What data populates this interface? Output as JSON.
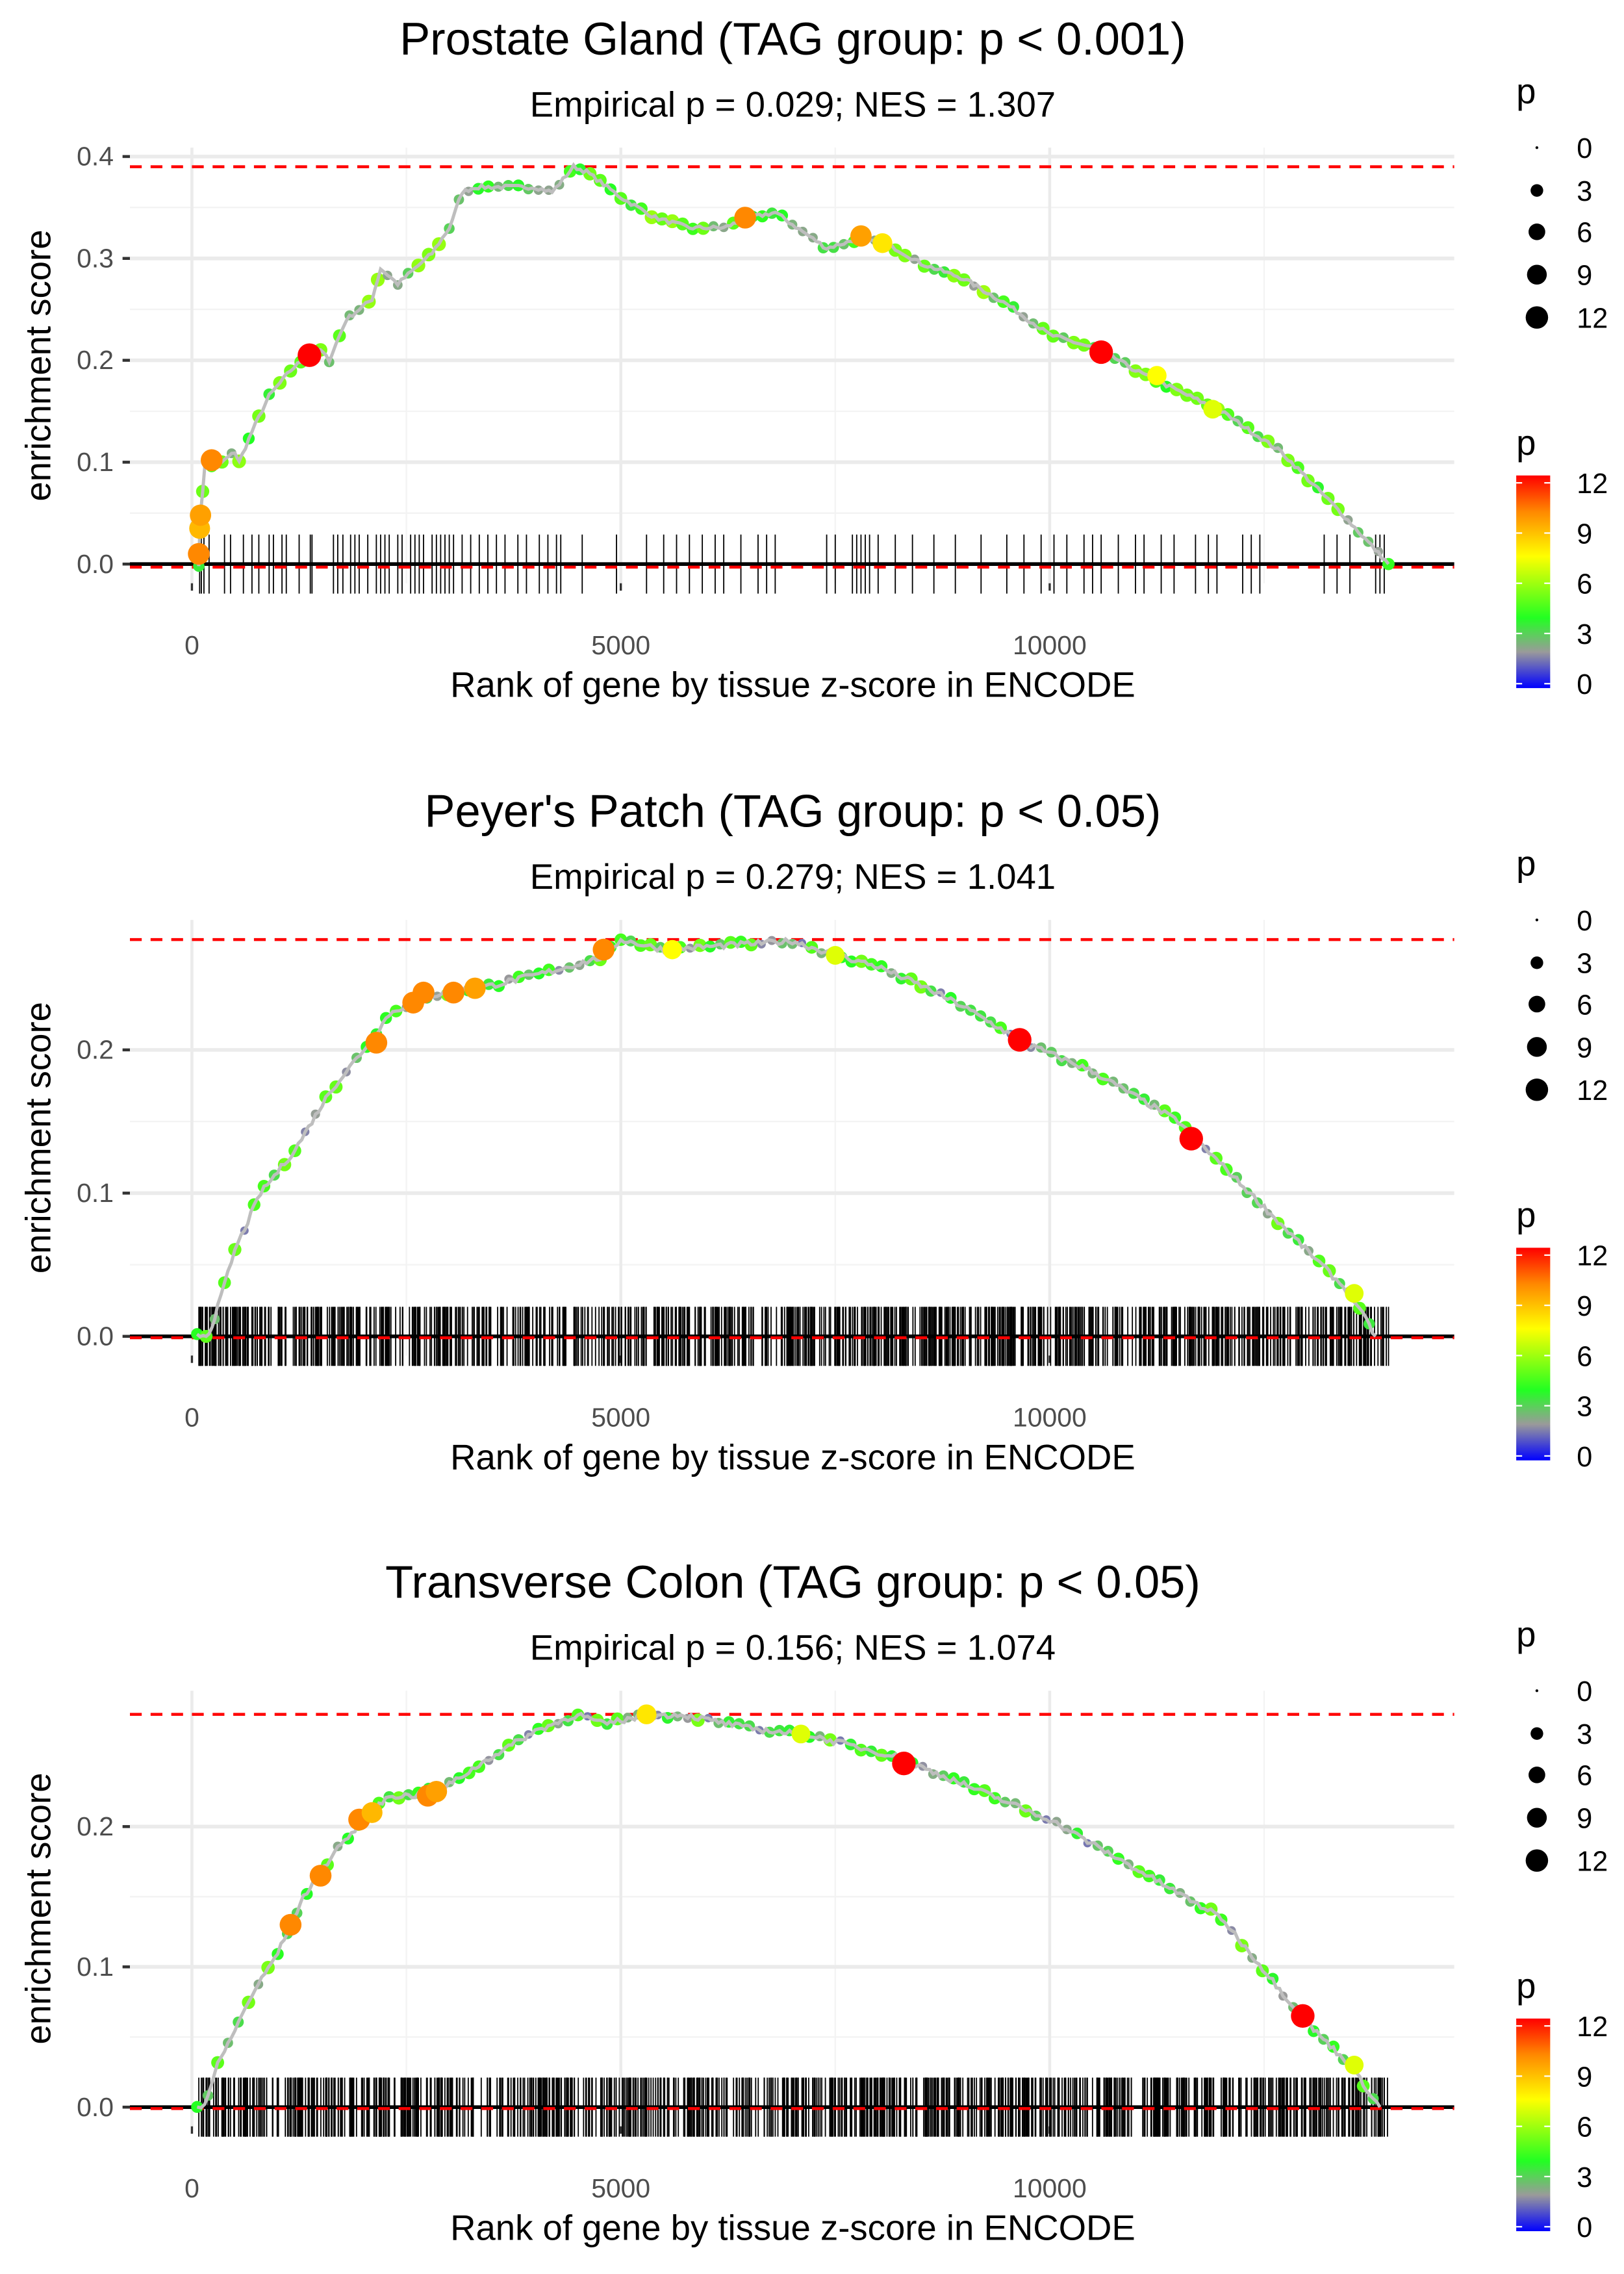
{
  "colors": {
    "max_line": "#ff0000",
    "curve": "#bebebe",
    "grid": "#ebebeb",
    "hit": "#000000",
    "scale": [
      {
        "p": 0,
        "color": "#0000ff"
      },
      {
        "p": 2,
        "color": "#9a9a9a"
      },
      {
        "p": 4,
        "color": "#22ff22"
      },
      {
        "p": 7.5,
        "color": "#ffff00"
      },
      {
        "p": 10,
        "color": "#ff8800"
      },
      {
        "p": 12,
        "color": "#ff0000"
      }
    ]
  },
  "chart_data": [
    {
      "type": "line",
      "title": "Prostate Gland (TAG group: p < 0.001)",
      "subtitle": "Empirical p = 0.029; NES = 1.307",
      "xlabel": "Rank of gene by tissue z-score in ENCODE",
      "ylabel": "enrichment score",
      "xlim": [
        -800,
        14700
      ],
      "x_ticks": [
        {
          "v": 0,
          "label": "0"
        },
        {
          "v": 5000,
          "label": "5000"
        },
        {
          "v": 10000,
          "label": "10000"
        }
      ],
      "y_ticks": [
        {
          "v": 0,
          "label": "0.0"
        },
        {
          "v": 0.1,
          "label": "0.1"
        },
        {
          "v": 0.2,
          "label": "0.2"
        },
        {
          "v": 0.3,
          "label": "0.3"
        },
        {
          "v": 0.4,
          "label": "0.4"
        }
      ],
      "max_es": 0.39,
      "min_es": -0.003,
      "curve": [
        [
          80,
          0.0
        ],
        [
          100,
          0.05
        ],
        [
          150,
          0.095
        ],
        [
          350,
          0.1
        ],
        [
          500,
          0.11
        ],
        [
          550,
          0.1
        ],
        [
          700,
          0.13
        ],
        [
          900,
          0.165
        ],
        [
          1150,
          0.19
        ],
        [
          1350,
          0.205
        ],
        [
          1500,
          0.21
        ],
        [
          1600,
          0.2
        ],
        [
          1800,
          0.24
        ],
        [
          2100,
          0.26
        ],
        [
          2200,
          0.29
        ],
        [
          2400,
          0.275
        ],
        [
          2800,
          0.305
        ],
        [
          3000,
          0.33
        ],
        [
          3150,
          0.365
        ],
        [
          3300,
          0.37
        ],
        [
          4000,
          0.37
        ],
        [
          4200,
          0.365
        ],
        [
          4450,
          0.39
        ],
        [
          4600,
          0.385
        ],
        [
          5000,
          0.36
        ],
        [
          5400,
          0.34
        ],
        [
          5800,
          0.33
        ],
        [
          6200,
          0.33
        ],
        [
          6500,
          0.34
        ],
        [
          6800,
          0.345
        ],
        [
          7400,
          0.31
        ],
        [
          7800,
          0.32
        ],
        [
          8200,
          0.31
        ],
        [
          8500,
          0.295
        ],
        [
          9000,
          0.28
        ],
        [
          9500,
          0.255
        ],
        [
          10000,
          0.225
        ],
        [
          10600,
          0.21
        ],
        [
          11000,
          0.19
        ],
        [
          12000,
          0.15
        ],
        [
          12700,
          0.11
        ],
        [
          13400,
          0.05
        ],
        [
          13950,
          0.0
        ]
      ],
      "highlight_points": [
        [
          80,
          0.01,
          10
        ],
        [
          90,
          0.035,
          9
        ],
        [
          100,
          0.048,
          9.5
        ],
        [
          230,
          0.102,
          10
        ],
        [
          1370,
          0.205,
          12
        ],
        [
          6450,
          0.34,
          10
        ],
        [
          7800,
          0.322,
          9.5
        ],
        [
          8050,
          0.315,
          8
        ],
        [
          10600,
          0.208,
          12
        ],
        [
          11250,
          0.185,
          7.5
        ],
        [
          11900,
          0.152,
          7
        ]
      ],
      "background_p": 4,
      "hits": [
        90,
        110,
        140,
        200,
        380,
        450,
        600,
        700,
        780,
        900,
        950,
        1050,
        1100,
        1250,
        1380,
        1400,
        1650,
        1700,
        1760,
        1850,
        1900,
        1950,
        2050,
        2150,
        2200,
        2250,
        2300,
        2400,
        2450,
        2550,
        2600,
        2650,
        2700,
        2800,
        2850,
        2900,
        2950,
        3000,
        3050,
        3150,
        3250,
        3350,
        3450,
        3550,
        3650,
        3800,
        3900,
        4050,
        4150,
        4250,
        4300,
        4550,
        4950,
        5300,
        5500,
        5650,
        5800,
        5950,
        6100,
        6200,
        6400,
        6600,
        6700,
        6800,
        7400,
        7500,
        7700,
        7750,
        7800,
        7850,
        7900,
        8000,
        8200,
        8400,
        8650,
        8900,
        9200,
        9500,
        9700,
        9900,
        10050,
        10200,
        10400,
        10500,
        10600,
        10800,
        11000,
        11100,
        11300,
        11450,
        11700,
        11850,
        11950,
        12250,
        12350,
        12450,
        13200,
        13350,
        13500,
        13800,
        13850,
        13900
      ],
      "dense_hits": null
    },
    {
      "type": "line",
      "title": "Peyer's Patch (TAG group: p < 0.05)",
      "subtitle": "Empirical p = 0.279; NES = 1.041",
      "xlabel": "Rank of gene by tissue z-score in ENCODE",
      "ylabel": "enrichment score",
      "xlim": [
        -800,
        14700
      ],
      "x_ticks": [
        {
          "v": 0,
          "label": "0"
        },
        {
          "v": 5000,
          "label": "5000"
        },
        {
          "v": 10000,
          "label": "10000"
        }
      ],
      "y_ticks": [
        {
          "v": 0,
          "label": "0.0"
        },
        {
          "v": 0.1,
          "label": "0.1"
        },
        {
          "v": 0.2,
          "label": "0.2"
        }
      ],
      "max_es": 0.277,
      "min_es": -0.001,
      "curve": [
        [
          60,
          0.0
        ],
        [
          200,
          0.002
        ],
        [
          300,
          0.02
        ],
        [
          500,
          0.06
        ],
        [
          800,
          0.1
        ],
        [
          1200,
          0.13
        ],
        [
          1600,
          0.17
        ],
        [
          2000,
          0.2
        ],
        [
          2300,
          0.225
        ],
        [
          2700,
          0.237
        ],
        [
          3500,
          0.245
        ],
        [
          4200,
          0.255
        ],
        [
          4800,
          0.265
        ],
        [
          5000,
          0.277
        ],
        [
          5500,
          0.27
        ],
        [
          6000,
          0.272
        ],
        [
          7000,
          0.276
        ],
        [
          7300,
          0.27
        ],
        [
          8000,
          0.258
        ],
        [
          8500,
          0.245
        ],
        [
          9000,
          0.23
        ],
        [
          9700,
          0.205
        ],
        [
          10500,
          0.185
        ],
        [
          11500,
          0.15
        ],
        [
          12500,
          0.09
        ],
        [
          13500,
          0.03
        ],
        [
          13800,
          0.0
        ]
      ],
      "highlight_points": [
        [
          2150,
          0.205,
          10
        ],
        [
          2580,
          0.233,
          10
        ],
        [
          2700,
          0.24,
          10
        ],
        [
          3050,
          0.24,
          10
        ],
        [
          3300,
          0.243,
          9.5
        ],
        [
          4800,
          0.27,
          10
        ],
        [
          5600,
          0.27,
          7.5
        ],
        [
          7500,
          0.266,
          7
        ],
        [
          9650,
          0.207,
          12
        ],
        [
          11650,
          0.138,
          12
        ],
        [
          13550,
          0.03,
          7
        ]
      ],
      "background_p": 3.5,
      "hits": null,
      "dense_hits": {
        "from": 80,
        "to": 13950,
        "count": 900
      }
    },
    {
      "type": "line",
      "title": "Transverse Colon (TAG group: p < 0.05)",
      "subtitle": "Empirical p = 0.156; NES = 1.074",
      "xlabel": "Rank of gene by tissue z-score in ENCODE",
      "ylabel": "enrichment score",
      "xlim": [
        -800,
        14700
      ],
      "x_ticks": [
        {
          "v": 0,
          "label": "0"
        },
        {
          "v": 5000,
          "label": "5000"
        },
        {
          "v": 10000,
          "label": "10000"
        }
      ],
      "y_ticks": [
        {
          "v": 0,
          "label": "0.0"
        },
        {
          "v": 0.1,
          "label": "0.1"
        },
        {
          "v": 0.2,
          "label": "0.2"
        }
      ],
      "max_es": 0.28,
      "min_es": -0.001,
      "curve": [
        [
          60,
          0.0
        ],
        [
          150,
          0.002
        ],
        [
          300,
          0.03
        ],
        [
          700,
          0.08
        ],
        [
          1000,
          0.11
        ],
        [
          1300,
          0.15
        ],
        [
          1700,
          0.185
        ],
        [
          2100,
          0.21
        ],
        [
          2300,
          0.222
        ],
        [
          2600,
          0.222
        ],
        [
          3000,
          0.23
        ],
        [
          3500,
          0.25
        ],
        [
          4000,
          0.268
        ],
        [
          4500,
          0.28
        ],
        [
          4800,
          0.273
        ],
        [
          5200,
          0.278
        ],
        [
          5700,
          0.28
        ],
        [
          6500,
          0.27
        ],
        [
          7200,
          0.265
        ],
        [
          8200,
          0.25
        ],
        [
          9000,
          0.23
        ],
        [
          10000,
          0.205
        ],
        [
          11000,
          0.17
        ],
        [
          12000,
          0.135
        ],
        [
          13000,
          0.06
        ],
        [
          13500,
          0.03
        ],
        [
          13850,
          0.0
        ]
      ],
      "highlight_points": [
        [
          1150,
          0.13,
          10
        ],
        [
          1500,
          0.165,
          10
        ],
        [
          1950,
          0.205,
          10
        ],
        [
          2100,
          0.21,
          9
        ],
        [
          2750,
          0.222,
          10
        ],
        [
          2850,
          0.225,
          9.5
        ],
        [
          5300,
          0.28,
          8
        ],
        [
          7100,
          0.266,
          7
        ],
        [
          8300,
          0.245,
          12
        ],
        [
          12950,
          0.065,
          12
        ],
        [
          13550,
          0.03,
          7
        ]
      ],
      "background_p": 3.5,
      "hits": null,
      "dense_hits": {
        "from": 80,
        "to": 13950,
        "count": 900
      }
    }
  ],
  "legends": {
    "size_title": "p",
    "size_items": [
      {
        "p": 0,
        "label": "0"
      },
      {
        "p": 3,
        "label": "3"
      },
      {
        "p": 6,
        "label": "6"
      },
      {
        "p": 9,
        "label": "9"
      },
      {
        "p": 12,
        "label": "12"
      }
    ],
    "color_title": "p",
    "color_labels": [
      {
        "p": 12,
        "label": "12"
      },
      {
        "p": 9,
        "label": "9"
      },
      {
        "p": 6,
        "label": "6"
      },
      {
        "p": 3,
        "label": "3"
      },
      {
        "p": 0,
        "label": "0"
      }
    ]
  }
}
